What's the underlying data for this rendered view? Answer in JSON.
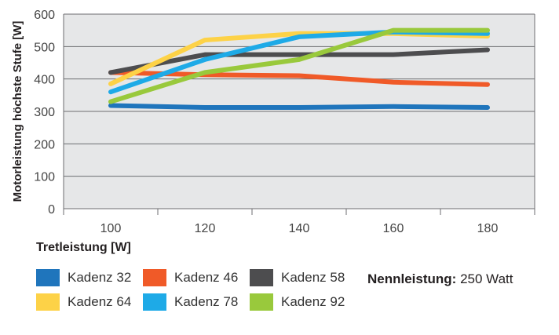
{
  "chart_data": {
    "type": "line",
    "xlabel": "Tretleistung [W]",
    "ylabel": "Motorleistung höchste Stufe [W]",
    "categories": [
      "100",
      "120",
      "140",
      "160",
      "180"
    ],
    "ylim": [
      0,
      600
    ],
    "yticks": [
      "0",
      "100",
      "200",
      "300",
      "400",
      "500",
      "600"
    ],
    "grid": true,
    "legend_position": "bottom",
    "series": [
      {
        "name": "Kadenz 32",
        "color": "#1f75bc",
        "values": [
          318,
          312,
          312,
          315,
          312
        ]
      },
      {
        "name": "Kadenz 46",
        "color": "#f05a28",
        "values": [
          420,
          413,
          410,
          390,
          383
        ]
      },
      {
        "name": "Kadenz 58",
        "color": "#4d4d4f",
        "values": [
          420,
          475,
          475,
          475,
          490
        ]
      },
      {
        "name": "Kadenz 64",
        "color": "#fdd247",
        "values": [
          385,
          520,
          540,
          540,
          532
        ]
      },
      {
        "name": "Kadenz 78",
        "color": "#1eaae7",
        "values": [
          360,
          460,
          530,
          545,
          540
        ]
      },
      {
        "name": "Kadenz 92",
        "color": "#99c93c",
        "values": [
          330,
          420,
          460,
          550,
          550
        ]
      }
    ]
  },
  "note": {
    "label": "Nennleistung:",
    "value": " 250 Watt"
  }
}
